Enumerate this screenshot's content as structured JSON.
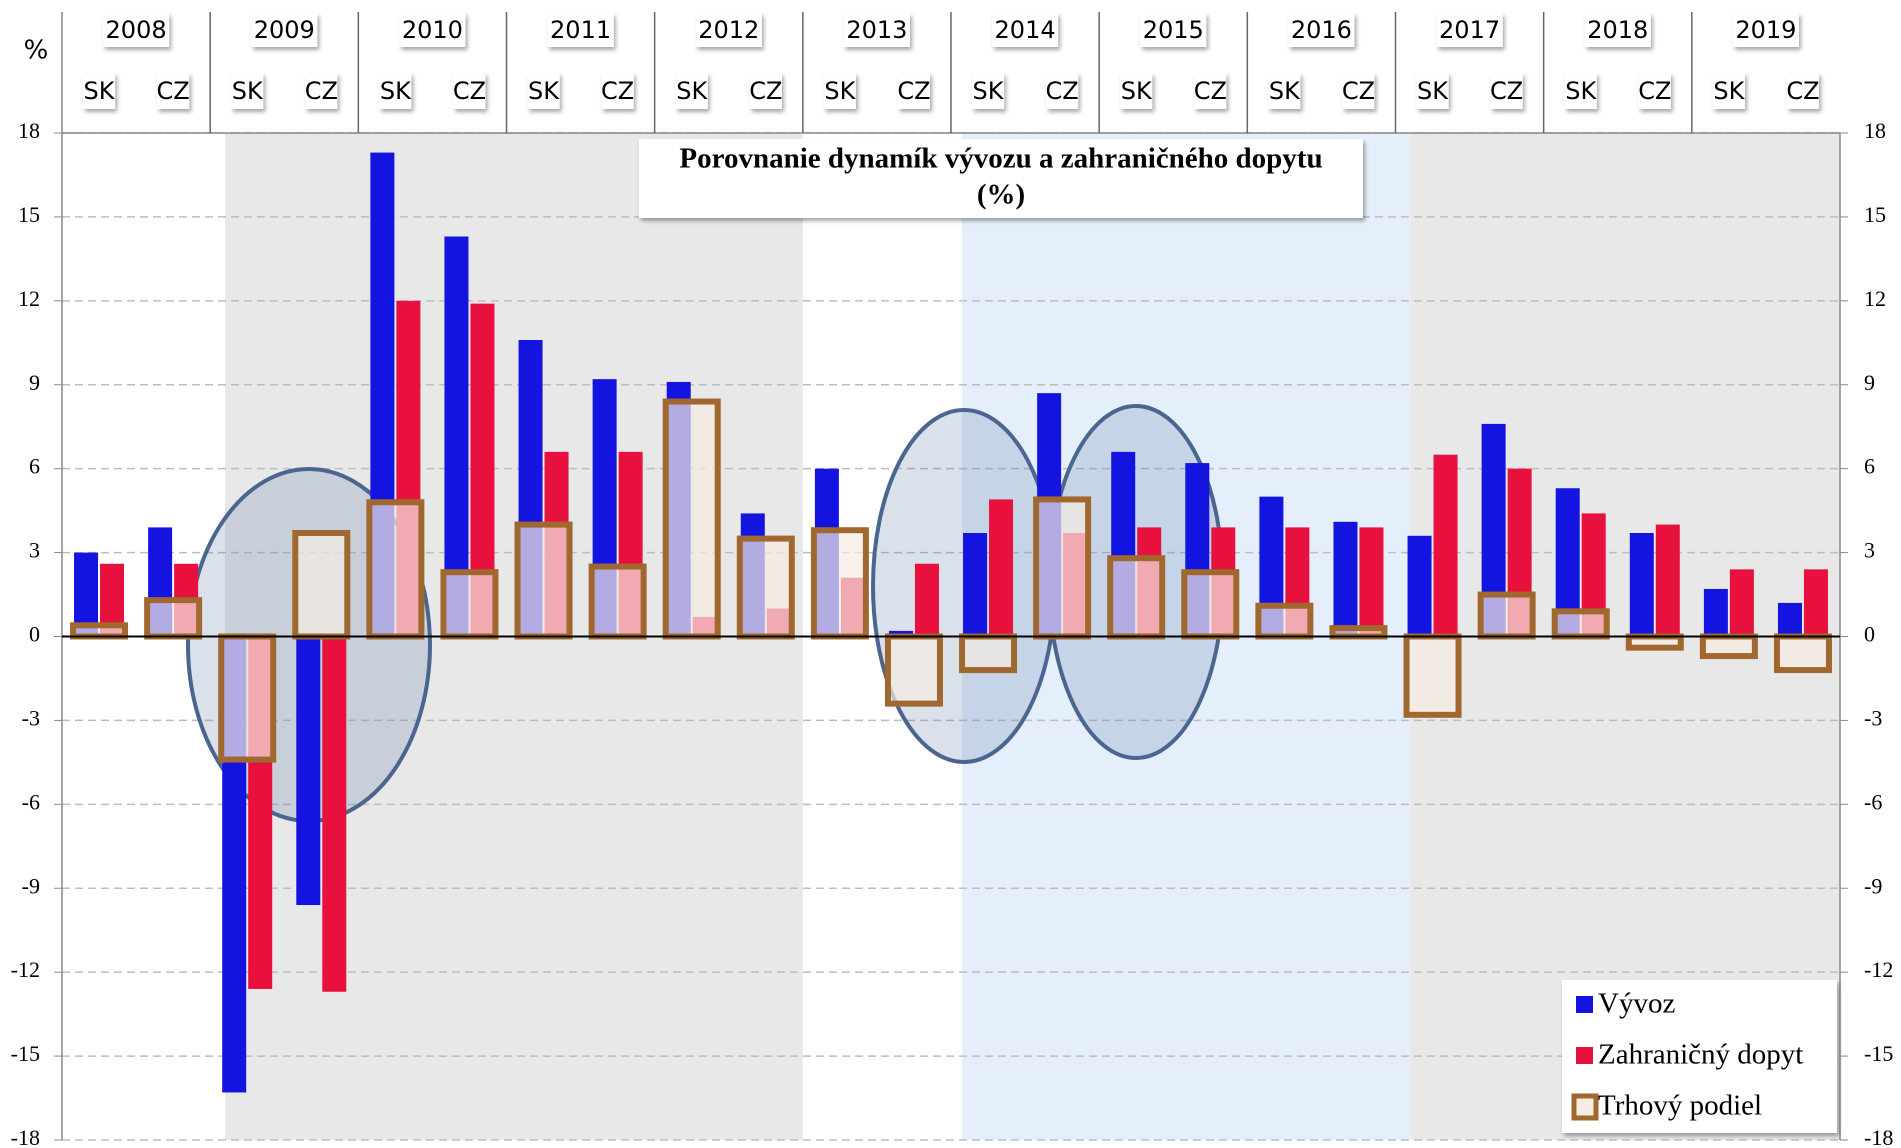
{
  "chart_data": {
    "type": "bar",
    "title": "Porovnanie dynamík vývozu a zahraničného dopytu",
    "subtitle": "(%)",
    "y_label": "%",
    "groups": [
      "2008",
      "2009",
      "2010",
      "2011",
      "2012",
      "2013",
      "2014",
      "2015",
      "2016",
      "2017",
      "2018",
      "2019"
    ],
    "categories": [
      "SK",
      "CZ",
      "SK",
      "CZ",
      "SK",
      "CZ",
      "SK",
      "CZ",
      "SK",
      "CZ",
      "SK",
      "CZ",
      "SK",
      "CZ",
      "SK",
      "CZ",
      "SK",
      "CZ",
      "SK",
      "CZ",
      "SK",
      "CZ",
      "SK",
      "CZ"
    ],
    "series": [
      {
        "name": "Vývoz",
        "color": "#1414e0",
        "values": [
          3.0,
          3.9,
          -16.3,
          -9.6,
          17.3,
          14.3,
          10.6,
          9.2,
          9.1,
          4.4,
          6.0,
          0.2,
          3.7,
          8.7,
          6.6,
          6.2,
          5.0,
          4.1,
          3.6,
          7.6,
          5.3,
          3.7,
          1.7,
          1.2
        ]
      },
      {
        "name": "Zahraničný dopyt",
        "color": "#e8103c",
        "values": [
          2.6,
          2.6,
          -12.6,
          -12.7,
          12.0,
          11.9,
          6.6,
          6.6,
          0.7,
          1.0,
          2.1,
          2.6,
          4.9,
          3.7,
          3.9,
          3.9,
          3.9,
          3.9,
          6.5,
          6.0,
          4.4,
          4.0,
          2.4,
          2.4
        ]
      },
      {
        "name": "Trhový podiel",
        "color": "#a0672e",
        "values": [
          0.4,
          1.3,
          -4.4,
          3.7,
          4.8,
          2.3,
          4.0,
          2.5,
          8.4,
          3.5,
          3.8,
          -2.4,
          -1.2,
          4.9,
          2.8,
          2.3,
          1.1,
          0.3,
          -2.8,
          1.5,
          0.9,
          -0.4,
          -0.7,
          -1.2
        ]
      }
    ],
    "ylim": [
      -18,
      18
    ],
    "yticks": [
      -18,
      -15,
      -12,
      -9,
      -6,
      -3,
      0,
      3,
      6,
      9,
      12,
      15,
      18
    ],
    "grid": true,
    "legend": "bottom-right"
  }
}
